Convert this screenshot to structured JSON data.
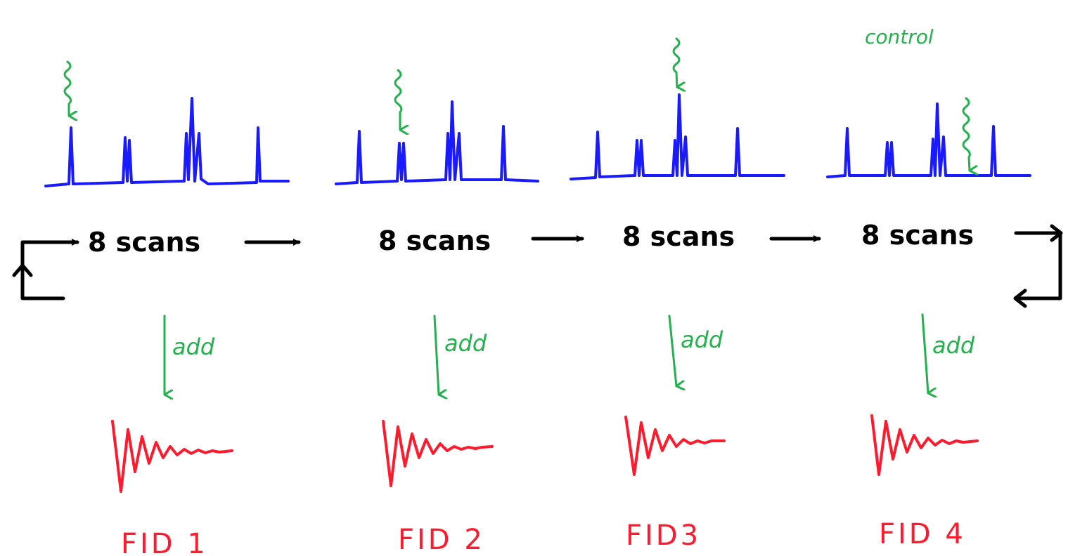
{
  "colors": {
    "spectrum": "#1a1aff",
    "perturbation": "#22b14c",
    "flow": "#000000",
    "fid": "#ff1a2e"
  },
  "control_label": "control",
  "stages": [
    {
      "scans_label": "8 scans",
      "add_label": "add",
      "fid_label": "FID 1"
    },
    {
      "scans_label": "8 scans",
      "add_label": "add",
      "fid_label": "FID 2"
    },
    {
      "scans_label": "8 scans",
      "add_label": "add",
      "fid_label": "FID3"
    },
    {
      "scans_label": "8 scans",
      "add_label": "add",
      "fid_label": "FID 4"
    }
  ]
}
